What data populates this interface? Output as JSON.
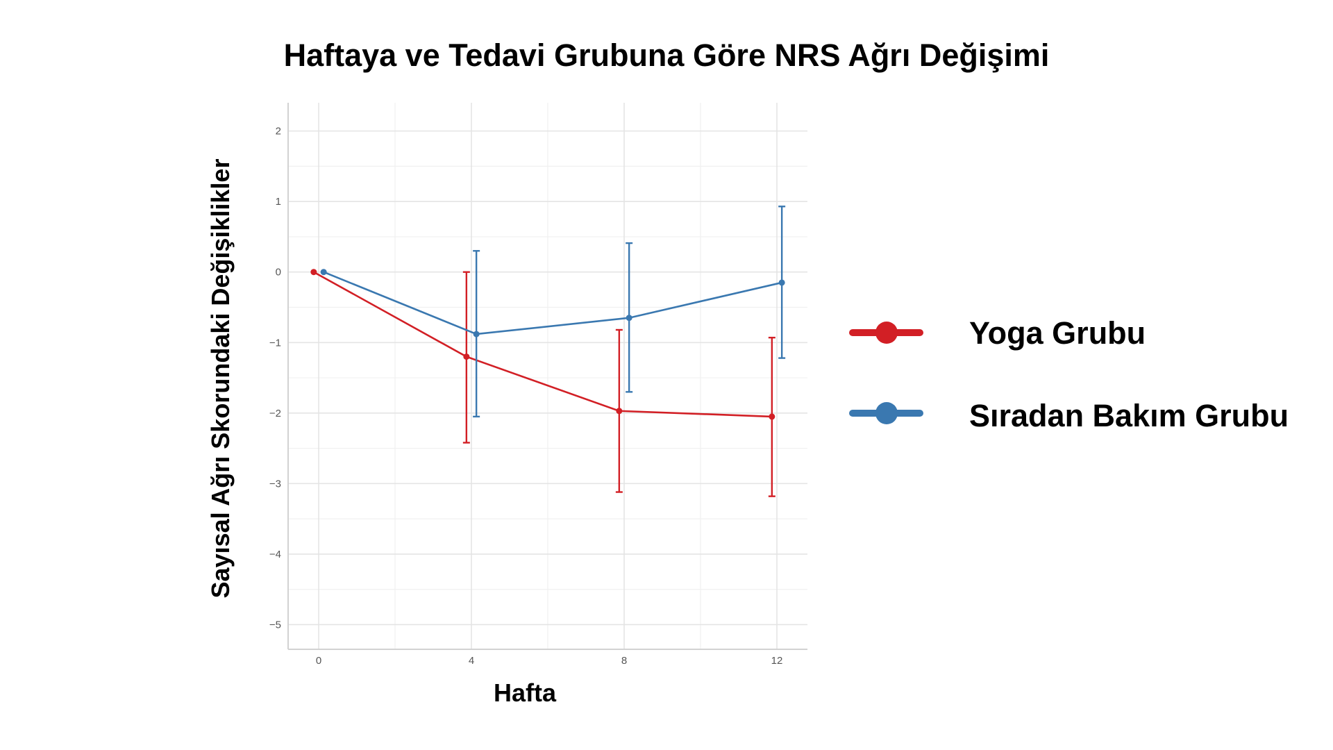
{
  "chart_data": {
    "type": "line",
    "title": "Haftaya ve Tedavi Grubuna Göre NRS Ağrı Değişimi",
    "xlabel": "Hafta",
    "ylabel": "Sayısal Ağrı Skorundaki Değişiklikler",
    "x": [
      0,
      4,
      8,
      12
    ],
    "x_ticks": [
      "0",
      "4",
      "8",
      "12"
    ],
    "y_ticks": [
      "2",
      "1",
      "0",
      "−1",
      "−2",
      "−3",
      "−4",
      "−5"
    ],
    "xlim": [
      -0.8,
      12.8
    ],
    "ylim": [
      -5.35,
      2.4
    ],
    "grid": true,
    "legend_position": "right",
    "series": [
      {
        "name": "Yoga Grubu",
        "color": "#d21f25",
        "values": [
          0,
          -1.2,
          -1.97,
          -2.05
        ],
        "error_lower": [
          0,
          -2.42,
          -3.12,
          -3.18
        ],
        "error_upper": [
          0,
          0,
          -0.82,
          -0.93
        ]
      },
      {
        "name": "Sıradan Bakım Grubu",
        "color": "#3a78b0",
        "values": [
          0,
          -0.88,
          -0.65,
          -0.15
        ],
        "error_lower": [
          0,
          -2.05,
          -1.7,
          -1.22
        ],
        "error_upper": [
          0,
          0.3,
          0.41,
          0.93
        ]
      }
    ]
  }
}
